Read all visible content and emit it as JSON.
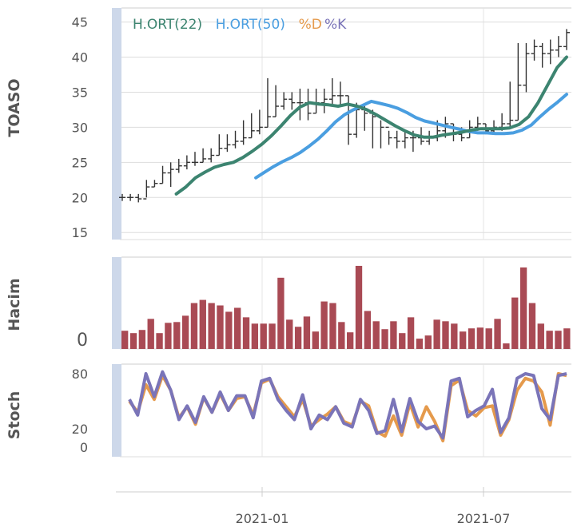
{
  "chart_data": [
    {
      "panel": "price",
      "type": "ohlc",
      "title": "TOASO",
      "ylim": [
        14,
        47
      ],
      "yticks": [
        "45",
        "40",
        "35",
        "30",
        "25",
        "20",
        "15"
      ],
      "ytick_values": [
        45,
        40,
        35,
        30,
        25,
        20,
        15
      ],
      "colors": {
        "bars": "#333333",
        "ma22": "#3c8470",
        "ma50": "#4a9ee0",
        "grid": "#dddddd",
        "accent": "#cdd8ea"
      },
      "legend": [
        {
          "label": "H.ORT(22)",
          "color": "#3c8470"
        },
        {
          "label": "H.ORT(50)",
          "color": "#4a9ee0"
        },
        {
          "label": "%D",
          "color": "#e59a4c"
        },
        {
          "label": "%K",
          "color": "#7a74b8"
        }
      ],
      "close": [
        20.0,
        20.0,
        19.8,
        21.5,
        22.0,
        23.5,
        24.0,
        24.5,
        25.0,
        25.0,
        25.5,
        26.0,
        27.0,
        27.5,
        28.0,
        28.5,
        29.5,
        30.0,
        31.5,
        33.0,
        34.0,
        33.5,
        33.5,
        32.0,
        33.5,
        34.0,
        34.5,
        34.5,
        29.0,
        32.5,
        32.0,
        31.5,
        30.0,
        28.5,
        28.0,
        28.5,
        28.5,
        28.0,
        28.5,
        29.5,
        30.5,
        29.0,
        28.5,
        30.0,
        30.5,
        29.5,
        30.0,
        30.5,
        31.0,
        36.0,
        40.5,
        41.5,
        40.5,
        41.0,
        41.5,
        43.5
      ],
      "high": [
        20.5,
        20.5,
        20.5,
        22.5,
        22.5,
        24.5,
        25.0,
        25.5,
        26.0,
        26.5,
        27.0,
        27.0,
        29.0,
        29.0,
        29.5,
        31.0,
        32.0,
        32.5,
        37.0,
        36.0,
        35.0,
        35.0,
        35.5,
        35.5,
        35.5,
        35.5,
        37.0,
        36.5,
        34.5,
        33.5,
        33.0,
        32.5,
        31.0,
        29.5,
        29.5,
        29.5,
        29.5,
        30.0,
        29.5,
        31.0,
        31.5,
        30.5,
        30.0,
        31.0,
        31.5,
        30.5,
        31.0,
        32.0,
        36.5,
        42.0,
        42.0,
        42.5,
        42.0,
        42.5,
        43.0,
        44.0
      ],
      "low": [
        19.5,
        19.5,
        19.3,
        20.0,
        21.5,
        22.0,
        21.5,
        23.5,
        24.0,
        24.5,
        25.0,
        25.0,
        26.0,
        26.5,
        27.0,
        27.5,
        28.5,
        29.0,
        30.0,
        31.5,
        32.5,
        32.5,
        31.0,
        31.0,
        32.0,
        32.0,
        33.0,
        33.0,
        27.5,
        28.5,
        29.5,
        27.0,
        27.0,
        27.5,
        27.0,
        27.0,
        26.5,
        27.5,
        27.5,
        28.0,
        28.5,
        28.0,
        28.0,
        28.5,
        29.5,
        29.0,
        29.0,
        29.5,
        30.0,
        31.0,
        35.0,
        39.5,
        38.5,
        39.0,
        40.0,
        41.0
      ],
      "ma22": [
        null,
        null,
        null,
        null,
        20.5,
        21.5,
        22.8,
        23.6,
        24.3,
        24.7,
        25.0,
        25.7,
        26.6,
        27.6,
        28.8,
        30.2,
        31.7,
        32.9,
        33.5,
        33.3,
        33.2,
        33.0,
        33.3,
        33.0,
        32.5,
        31.8,
        31.0,
        30.2,
        29.5,
        28.9,
        28.6,
        28.6,
        28.9,
        29.1,
        29.3,
        29.6,
        29.8,
        29.8,
        29.8,
        29.9,
        30.4,
        31.5,
        33.5,
        36.0,
        38.5,
        40.0
      ],
      "ma50": [
        null,
        null,
        null,
        null,
        null,
        null,
        null,
        null,
        null,
        null,
        22.8,
        23.6,
        24.4,
        25.1,
        25.7,
        26.4,
        27.3,
        28.3,
        29.5,
        30.8,
        31.8,
        32.5,
        33.1,
        33.7,
        33.4,
        33.1,
        32.7,
        32.1,
        31.4,
        30.9,
        30.6,
        30.3,
        30.0,
        29.7,
        29.4,
        29.2,
        29.2,
        29.1,
        29.1,
        29.2,
        29.6,
        30.3,
        31.5,
        32.6,
        33.6,
        34.7
      ]
    },
    {
      "panel": "volume",
      "type": "bar",
      "title": "Hacim",
      "ytick": "0",
      "bar_color": "#a94a54",
      "values": [
        23,
        20,
        24,
        38,
        20,
        33,
        34,
        42,
        58,
        62,
        58,
        55,
        47,
        52,
        40,
        32,
        32,
        32,
        90,
        37,
        28,
        41,
        22,
        60,
        58,
        34,
        21,
        105,
        48,
        35,
        25,
        35,
        20,
        40,
        13,
        17,
        37,
        35,
        32,
        22,
        26,
        27,
        26,
        38,
        7,
        65,
        103,
        58,
        32,
        23,
        23,
        26
      ]
    },
    {
      "panel": "stochastic",
      "type": "line",
      "title": "Stoch",
      "ylim": [
        0,
        100
      ],
      "yticks": [
        "80",
        "20",
        "0"
      ],
      "ytick_values": [
        80,
        20,
        0
      ],
      "series": [
        {
          "name": "%D",
          "color": "#e59a4c",
          "values": [
            50,
            38,
            68,
            52,
            78,
            62,
            32,
            44,
            25,
            54,
            38,
            58,
            40,
            53,
            55,
            35,
            70,
            74,
            55,
            44,
            33,
            52,
            23,
            30,
            36,
            44,
            28,
            24,
            50,
            45,
            17,
            12,
            34,
            13,
            48,
            22,
            44,
            28,
            7,
            67,
            73,
            40,
            34,
            43,
            45,
            13,
            30,
            62,
            75,
            72,
            60,
            24,
            80,
            78
          ]
        },
        {
          "name": "%K",
          "color": "#7a74b8",
          "values": [
            52,
            35,
            80,
            55,
            82,
            62,
            30,
            45,
            27,
            55,
            38,
            60,
            40,
            56,
            56,
            32,
            72,
            75,
            52,
            40,
            30,
            57,
            20,
            35,
            30,
            44,
            26,
            22,
            52,
            40,
            15,
            18,
            52,
            17,
            53,
            28,
            20,
            23,
            10,
            72,
            75,
            33,
            40,
            45,
            63,
            16,
            32,
            75,
            80,
            78,
            42,
            30,
            78,
            80
          ]
        }
      ]
    },
    {
      "panel": "x-axis",
      "xticks": [
        "2021-01",
        "2021-07"
      ],
      "grid_visible": true
    }
  ]
}
